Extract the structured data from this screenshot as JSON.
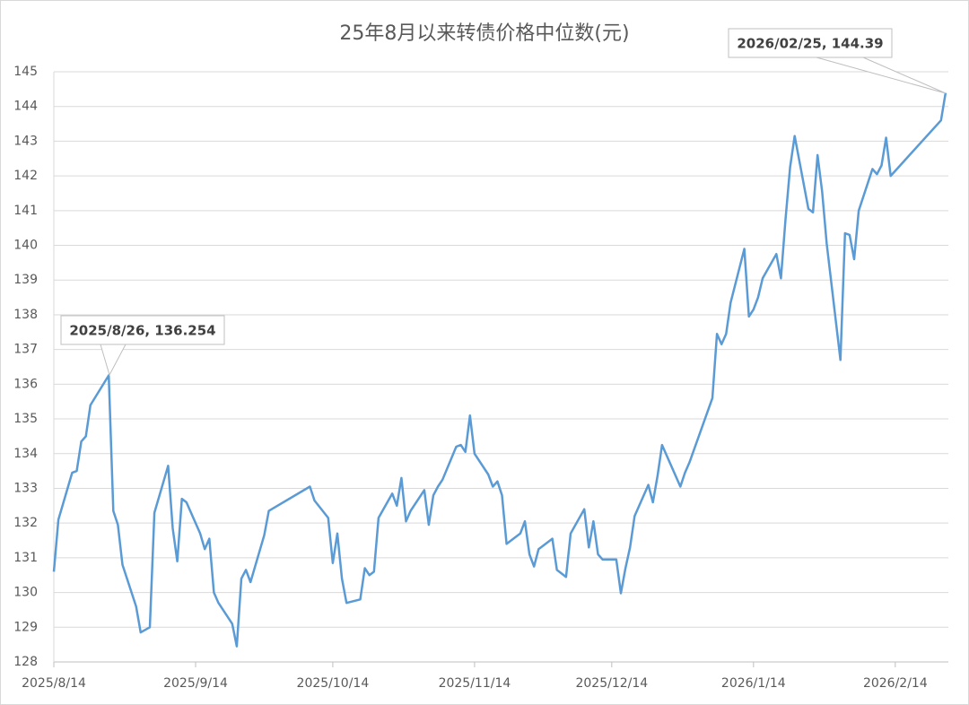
{
  "chart_data": {
    "type": "line",
    "title": "25年8月以来转债价格中位数(元)",
    "x": [
      "2025/8/14",
      "2025/8/15",
      "2025/8/18",
      "2025/8/19",
      "2025/8/20",
      "2025/8/21",
      "2025/8/22",
      "2025/8/26",
      "2025/8/27",
      "2025/8/28",
      "2025/8/29",
      "2025/9/1",
      "2025/9/2",
      "2025/9/4",
      "2025/9/5",
      "2025/9/8",
      "2025/9/9",
      "2025/9/10",
      "2025/9/11",
      "2025/9/12",
      "2025/9/15",
      "2025/9/16",
      "2025/9/17",
      "2025/9/18",
      "2025/9/19",
      "2025/9/22",
      "2025/9/23",
      "2025/9/24",
      "2025/9/25",
      "2025/9/26",
      "2025/9/29",
      "2025/9/30",
      "2025/10/9",
      "2025/10/10",
      "2025/10/13",
      "2025/10/14",
      "2025/10/15",
      "2025/10/16",
      "2025/10/17",
      "2025/10/20",
      "2025/10/21",
      "2025/10/22",
      "2025/10/23",
      "2025/10/24",
      "2025/10/27",
      "2025/10/28",
      "2025/10/29",
      "2025/10/30",
      "2025/10/31",
      "2025/11/3",
      "2025/11/4",
      "2025/11/5",
      "2025/11/6",
      "2025/11/7",
      "2025/11/10",
      "2025/11/11",
      "2025/11/12",
      "2025/11/13",
      "2025/11/14",
      "2025/11/17",
      "2025/11/18",
      "2025/11/19",
      "2025/11/20",
      "2025/11/21",
      "2025/11/24",
      "2025/11/25",
      "2025/11/26",
      "2025/11/27",
      "2025/11/28",
      "2025/12/1",
      "2025/12/2",
      "2025/12/4",
      "2025/12/5",
      "2025/12/8",
      "2025/12/9",
      "2025/12/10",
      "2025/12/11",
      "2025/12/12",
      "2025/12/15",
      "2025/12/16",
      "2025/12/17",
      "2025/12/18",
      "2025/12/19",
      "2025/12/22",
      "2025/12/23",
      "2025/12/24",
      "2025/12/25",
      "2025/12/26",
      "2025/12/29",
      "2025/12/30",
      "2025/12/31",
      "2026/1/5",
      "2026/1/6",
      "2026/1/7",
      "2026/1/8",
      "2026/1/9",
      "2026/1/12",
      "2026/1/13",
      "2026/1/14",
      "2026/1/15",
      "2026/1/16",
      "2026/1/19",
      "2026/1/20",
      "2026/1/21",
      "2026/1/22",
      "2026/1/23",
      "2026/1/26",
      "2026/1/27",
      "2026/1/28",
      "2026/1/29",
      "2026/1/30",
      "2026/2/2",
      "2026/2/3",
      "2026/2/4",
      "2026/2/5",
      "2026/2/6",
      "2026/2/9",
      "2026/2/10",
      "2026/2/11",
      "2026/2/12",
      "2026/2/13",
      "2026/2/24",
      "2026/2/25"
    ],
    "values": [
      130.6,
      132.1,
      133.45,
      133.5,
      134.35,
      134.5,
      135.4,
      136.254,
      132.35,
      131.95,
      130.8,
      129.6,
      128.85,
      129.0,
      132.3,
      133.65,
      131.85,
      130.9,
      132.7,
      132.6,
      131.7,
      131.25,
      131.55,
      130.0,
      129.7,
      129.1,
      128.45,
      130.4,
      130.65,
      130.3,
      131.65,
      132.35,
      133.05,
      132.65,
      132.15,
      130.85,
      131.7,
      130.4,
      129.7,
      129.8,
      130.7,
      130.5,
      130.6,
      132.15,
      132.85,
      132.5,
      133.3,
      132.05,
      132.35,
      132.95,
      131.95,
      132.8,
      133.05,
      133.25,
      134.2,
      134.25,
      134.05,
      135.1,
      134.0,
      133.4,
      133.05,
      133.2,
      132.8,
      131.4,
      131.7,
      132.05,
      131.1,
      130.75,
      131.25,
      131.55,
      130.65,
      130.45,
      131.7,
      132.4,
      131.3,
      132.05,
      131.1,
      130.95,
      130.95,
      129.98,
      130.7,
      131.3,
      132.2,
      133.1,
      132.6,
      133.35,
      134.25,
      133.95,
      133.05,
      133.45,
      133.75,
      135.6,
      137.45,
      137.15,
      137.45,
      138.35,
      139.9,
      137.95,
      138.15,
      138.5,
      139.05,
      139.75,
      139.05,
      140.75,
      142.25,
      143.15,
      141.05,
      140.95,
      142.6,
      141.55,
      140.05,
      136.7,
      140.35,
      140.3,
      139.6,
      141.0,
      142.2,
      142.05,
      142.3,
      143.1,
      142.0,
      143.6,
      144.39
    ],
    "color": "#5b9bd5",
    "xlim": [
      "2025/8/14",
      "2026/2/26"
    ],
    "xticks": [
      "2025/8/14",
      "2025/9/14",
      "2025/10/14",
      "2025/11/14",
      "2025/12/14",
      "2026/1/14",
      "2026/2/14"
    ],
    "ylim": [
      128,
      145
    ],
    "yticks": [
      128,
      129,
      130,
      131,
      132,
      133,
      134,
      135,
      136,
      137,
      138,
      139,
      140,
      141,
      142,
      143,
      144,
      145
    ],
    "grid": true,
    "annotations": [
      {
        "text": "2025/8/26, 136.254"
      },
      {
        "text": "2026/02/25, 144.39"
      }
    ]
  }
}
